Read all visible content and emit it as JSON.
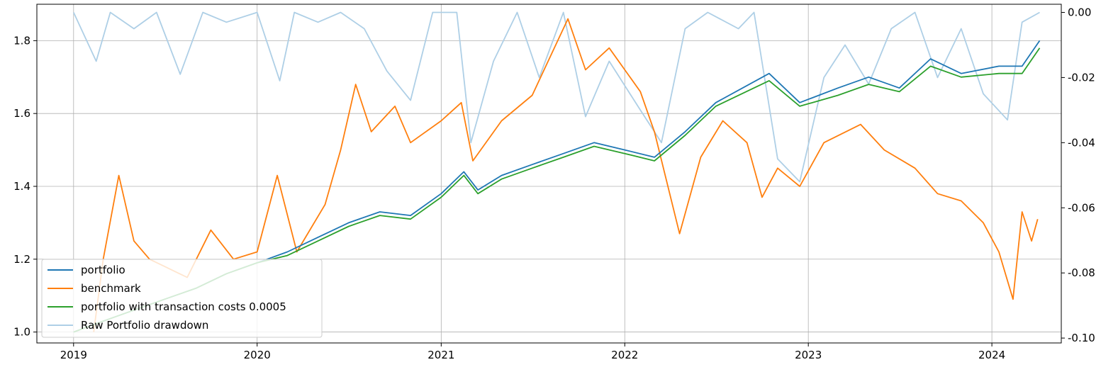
{
  "chart_data": {
    "type": "line",
    "title": "",
    "xlabel": "",
    "ylabel": "",
    "grid": true,
    "legend_position": "lower-left",
    "x_ticks": [
      "2019",
      "2020",
      "2021",
      "2022",
      "2023",
      "2024"
    ],
    "x_range": [
      "2018-10-20",
      "2024-05-18"
    ],
    "y_left": {
      "ticks": [
        "1.0",
        "1.2",
        "1.4",
        "1.6",
        "1.8"
      ],
      "ylim": [
        0.97,
        1.9
      ]
    },
    "y_right": {
      "ticks": [
        "0.00",
        "-0.02",
        "-0.04",
        "-0.06",
        "-0.08",
        "-0.10"
      ],
      "ylim": [
        -0.1015,
        0.0025
      ]
    },
    "series": [
      {
        "name": "portfolio",
        "axis": "left",
        "color": "#1f77b4",
        "points": [
          [
            "2019-01-01",
            1.0
          ],
          [
            "2019-03-01",
            1.03
          ],
          [
            "2019-05-01",
            1.06
          ],
          [
            "2019-07-01",
            1.09
          ],
          [
            "2019-09-01",
            1.12
          ],
          [
            "2019-11-01",
            1.16
          ],
          [
            "2020-01-01",
            1.19
          ],
          [
            "2020-03-01",
            1.22
          ],
          [
            "2020-05-01",
            1.26
          ],
          [
            "2020-07-01",
            1.3
          ],
          [
            "2020-09-01",
            1.33
          ],
          [
            "2020-11-01",
            1.32
          ],
          [
            "2021-01-01",
            1.38
          ],
          [
            "2021-02-15",
            1.44
          ],
          [
            "2021-03-15",
            1.39
          ],
          [
            "2021-05-01",
            1.43
          ],
          [
            "2021-07-01",
            1.46
          ],
          [
            "2021-09-01",
            1.49
          ],
          [
            "2021-11-01",
            1.52
          ],
          [
            "2022-01-01",
            1.5
          ],
          [
            "2022-03-01",
            1.48
          ],
          [
            "2022-05-01",
            1.55
          ],
          [
            "2022-07-01",
            1.63
          ],
          [
            "2022-10-15",
            1.71
          ],
          [
            "2022-12-15",
            1.63
          ],
          [
            "2023-03-01",
            1.67
          ],
          [
            "2023-05-01",
            1.7
          ],
          [
            "2023-07-01",
            1.67
          ],
          [
            "2023-09-01",
            1.75
          ],
          [
            "2023-11-01",
            1.71
          ],
          [
            "2024-01-15",
            1.73
          ],
          [
            "2024-03-01",
            1.73
          ],
          [
            "2024-04-05",
            1.8
          ]
        ]
      },
      {
        "name": "benchmark",
        "axis": "left",
        "color": "#ff7f0e",
        "points": [
          [
            "2019-02-10",
            1.0
          ],
          [
            "2019-03-01",
            1.2
          ],
          [
            "2019-04-01",
            1.43
          ],
          [
            "2019-05-01",
            1.25
          ],
          [
            "2019-06-01",
            1.2
          ],
          [
            "2019-07-01",
            1.18
          ],
          [
            "2019-08-15",
            1.15
          ],
          [
            "2019-10-01",
            1.28
          ],
          [
            "2019-11-15",
            1.2
          ],
          [
            "2020-01-01",
            1.22
          ],
          [
            "2020-02-10",
            1.43
          ],
          [
            "2020-03-20",
            1.22
          ],
          [
            "2020-05-15",
            1.35
          ],
          [
            "2020-06-15",
            1.5
          ],
          [
            "2020-07-15",
            1.68
          ],
          [
            "2020-08-15",
            1.55
          ],
          [
            "2020-10-01",
            1.62
          ],
          [
            "2020-11-01",
            1.52
          ],
          [
            "2021-01-01",
            1.58
          ],
          [
            "2021-02-10",
            1.63
          ],
          [
            "2021-03-05",
            1.47
          ],
          [
            "2021-05-01",
            1.58
          ],
          [
            "2021-07-01",
            1.65
          ],
          [
            "2021-09-10",
            1.86
          ],
          [
            "2021-10-15",
            1.72
          ],
          [
            "2021-12-01",
            1.78
          ],
          [
            "2022-02-01",
            1.66
          ],
          [
            "2022-03-01",
            1.55
          ],
          [
            "2022-04-20",
            1.27
          ],
          [
            "2022-06-01",
            1.48
          ],
          [
            "2022-07-15",
            1.58
          ],
          [
            "2022-09-01",
            1.52
          ],
          [
            "2022-10-01",
            1.37
          ],
          [
            "2022-11-01",
            1.45
          ],
          [
            "2022-12-15",
            1.4
          ],
          [
            "2023-02-01",
            1.52
          ],
          [
            "2023-04-15",
            1.57
          ],
          [
            "2023-06-01",
            1.5
          ],
          [
            "2023-08-01",
            1.45
          ],
          [
            "2023-09-15",
            1.38
          ],
          [
            "2023-11-01",
            1.36
          ],
          [
            "2023-12-15",
            1.3
          ],
          [
            "2024-01-15",
            1.22
          ],
          [
            "2024-02-12",
            1.09
          ],
          [
            "2024-03-01",
            1.33
          ],
          [
            "2024-03-20",
            1.25
          ],
          [
            "2024-04-01",
            1.31
          ]
        ]
      },
      {
        "name": "portfolio with transaction costs 0.0005",
        "axis": "left",
        "color": "#2ca02c",
        "points": [
          [
            "2019-01-01",
            1.0
          ],
          [
            "2019-03-01",
            1.03
          ],
          [
            "2019-05-01",
            1.06
          ],
          [
            "2019-07-01",
            1.09
          ],
          [
            "2019-09-01",
            1.12
          ],
          [
            "2019-11-01",
            1.16
          ],
          [
            "2020-01-01",
            1.19
          ],
          [
            "2020-03-01",
            1.21
          ],
          [
            "2020-05-01",
            1.25
          ],
          [
            "2020-07-01",
            1.29
          ],
          [
            "2020-09-01",
            1.32
          ],
          [
            "2020-11-01",
            1.31
          ],
          [
            "2021-01-01",
            1.37
          ],
          [
            "2021-02-15",
            1.43
          ],
          [
            "2021-03-15",
            1.38
          ],
          [
            "2021-05-01",
            1.42
          ],
          [
            "2021-07-01",
            1.45
          ],
          [
            "2021-09-01",
            1.48
          ],
          [
            "2021-11-01",
            1.51
          ],
          [
            "2022-01-01",
            1.49
          ],
          [
            "2022-03-01",
            1.47
          ],
          [
            "2022-05-01",
            1.54
          ],
          [
            "2022-07-01",
            1.62
          ],
          [
            "2022-10-15",
            1.69
          ],
          [
            "2022-12-15",
            1.62
          ],
          [
            "2023-03-01",
            1.65
          ],
          [
            "2023-05-01",
            1.68
          ],
          [
            "2023-07-01",
            1.66
          ],
          [
            "2023-09-01",
            1.73
          ],
          [
            "2023-11-01",
            1.7
          ],
          [
            "2024-01-15",
            1.71
          ],
          [
            "2024-03-01",
            1.71
          ],
          [
            "2024-04-05",
            1.78
          ]
        ]
      },
      {
        "name": "Raw Portfolio drawdown",
        "axis": "right",
        "color": "#aecfe6",
        "points": [
          [
            "2019-01-01",
            0.0
          ],
          [
            "2019-02-15",
            -0.015
          ],
          [
            "2019-03-15",
            0.0
          ],
          [
            "2019-05-01",
            -0.005
          ],
          [
            "2019-06-15",
            0.0
          ],
          [
            "2019-08-01",
            -0.019
          ],
          [
            "2019-09-15",
            0.0
          ],
          [
            "2019-11-01",
            -0.003
          ],
          [
            "2020-01-01",
            0.0
          ],
          [
            "2020-02-15",
            -0.021
          ],
          [
            "2020-03-15",
            0.0
          ],
          [
            "2020-05-01",
            -0.003
          ],
          [
            "2020-06-15",
            0.0
          ],
          [
            "2020-08-01",
            -0.005
          ],
          [
            "2020-09-15",
            -0.018
          ],
          [
            "2020-11-01",
            -0.027
          ],
          [
            "2020-12-15",
            0.0
          ],
          [
            "2021-02-01",
            0.0
          ],
          [
            "2021-03-01",
            -0.04
          ],
          [
            "2021-04-15",
            -0.015
          ],
          [
            "2021-06-01",
            0.0
          ],
          [
            "2021-07-15",
            -0.02
          ],
          [
            "2021-09-01",
            0.0
          ],
          [
            "2021-10-15",
            -0.032
          ],
          [
            "2021-12-01",
            -0.015
          ],
          [
            "2022-02-01",
            -0.03
          ],
          [
            "2022-03-15",
            -0.04
          ],
          [
            "2022-05-01",
            -0.005
          ],
          [
            "2022-06-15",
            0.0
          ],
          [
            "2022-08-15",
            -0.005
          ],
          [
            "2022-09-15",
            0.0
          ],
          [
            "2022-11-01",
            -0.045
          ],
          [
            "2022-12-15",
            -0.052
          ],
          [
            "2023-02-01",
            -0.02
          ],
          [
            "2023-03-15",
            -0.01
          ],
          [
            "2023-05-01",
            -0.022
          ],
          [
            "2023-06-15",
            -0.005
          ],
          [
            "2023-08-01",
            0.0
          ],
          [
            "2023-09-15",
            -0.02
          ],
          [
            "2023-11-01",
            -0.005
          ],
          [
            "2023-12-15",
            -0.025
          ],
          [
            "2024-02-01",
            -0.033
          ],
          [
            "2024-03-01",
            -0.003
          ],
          [
            "2024-04-05",
            0.0
          ]
        ]
      }
    ]
  }
}
